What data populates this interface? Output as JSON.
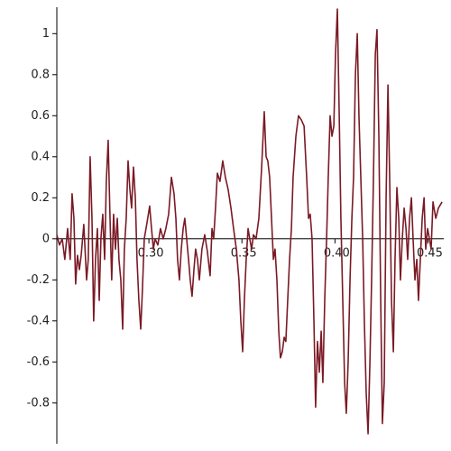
{
  "chart_data": {
    "type": "line",
    "color": "#7a1a25",
    "xlim": [
      0.2505,
      0.4585
    ],
    "ylim": [
      -0.99,
      1.12
    ],
    "xticks": [
      {
        "value": 0.3,
        "label": "0.30"
      },
      {
        "value": 0.35,
        "label": "0.35"
      },
      {
        "value": 0.4,
        "label": "0.40"
      },
      {
        "value": 0.45,
        "label": "0.45"
      }
    ],
    "yticks": [
      -0.8,
      -0.6,
      -0.4,
      -0.2,
      0,
      0.2,
      0.4,
      0.6,
      0.8,
      1
    ],
    "x": [
      0.2505,
      0.2519,
      0.2534,
      0.2548,
      0.2563,
      0.2577,
      0.2587,
      0.2597,
      0.2606,
      0.2616,
      0.2626,
      0.2636,
      0.265,
      0.2665,
      0.2674,
      0.2684,
      0.2694,
      0.2703,
      0.2713,
      0.2723,
      0.2733,
      0.2742,
      0.2752,
      0.2762,
      0.2771,
      0.2781,
      0.2791,
      0.28,
      0.281,
      0.282,
      0.283,
      0.2839,
      0.2849,
      0.2859,
      0.2868,
      0.2878,
      0.2888,
      0.2897,
      0.2907,
      0.2917,
      0.2927,
      0.2936,
      0.2946,
      0.2956,
      0.2965,
      0.2975,
      0.299,
      0.3004,
      0.3014,
      0.3024,
      0.3033,
      0.3048,
      0.3062,
      0.3077,
      0.3091,
      0.3106,
      0.3121,
      0.3135,
      0.3145,
      0.3154,
      0.3164,
      0.3174,
      0.3184,
      0.3193,
      0.3203,
      0.3213,
      0.3222,
      0.3232,
      0.3242,
      0.3251,
      0.3261,
      0.3271,
      0.3285,
      0.33,
      0.3314,
      0.3329,
      0.3339,
      0.3348,
      0.3358,
      0.3368,
      0.3382,
      0.3397,
      0.3411,
      0.3426,
      0.3441,
      0.3455,
      0.347,
      0.3484,
      0.3494,
      0.3504,
      0.3513,
      0.3523,
      0.3533,
      0.3542,
      0.3552,
      0.3562,
      0.3576,
      0.3591,
      0.3606,
      0.362,
      0.363,
      0.3639,
      0.3649,
      0.3659,
      0.3669,
      0.3678,
      0.3688,
      0.3698,
      0.3707,
      0.3717,
      0.3727,
      0.3736,
      0.3746,
      0.3756,
      0.3766,
      0.3775,
      0.379,
      0.3804,
      0.3819,
      0.3834,
      0.3848,
      0.3858,
      0.3867,
      0.3877,
      0.3887,
      0.3896,
      0.3906,
      0.3916,
      0.3926,
      0.3935,
      0.3945,
      0.3955,
      0.3964,
      0.3974,
      0.3984,
      0.3994,
      0.4003,
      0.4013,
      0.4023,
      0.4032,
      0.4042,
      0.4052,
      0.4061,
      0.4071,
      0.4081,
      0.4091,
      0.41,
      0.411,
      0.412,
      0.4129,
      0.4139,
      0.4149,
      0.4158,
      0.4168,
      0.4178,
      0.4188,
      0.4197,
      0.4207,
      0.4217,
      0.4226,
      0.4236,
      0.4246,
      0.4255,
      0.4265,
      0.4275,
      0.4285,
      0.4294,
      0.4304,
      0.4314,
      0.4323,
      0.4333,
      0.4343,
      0.4352,
      0.4362,
      0.4372,
      0.4382,
      0.4391,
      0.4401,
      0.4411,
      0.442,
      0.443,
      0.444,
      0.4449,
      0.4459,
      0.4469,
      0.4479,
      0.4488,
      0.4498,
      0.4508,
      0.4517,
      0.4527,
      0.4542,
      0.4556,
      0.4576
    ],
    "values": [
      0.02,
      -0.03,
      0.0,
      -0.1,
      0.05,
      -0.1,
      0.22,
      0.1,
      -0.22,
      -0.08,
      -0.15,
      -0.08,
      0.07,
      -0.2,
      -0.1,
      0.4,
      0.1,
      -0.4,
      -0.1,
      0.05,
      -0.3,
      0.0,
      0.12,
      -0.1,
      0.28,
      0.48,
      0.1,
      -0.2,
      0.12,
      -0.05,
      0.1,
      -0.1,
      -0.2,
      -0.44,
      -0.05,
      0.1,
      0.38,
      0.25,
      0.15,
      0.35,
      0.2,
      -0.1,
      -0.3,
      -0.44,
      -0.25,
      0.0,
      0.08,
      0.16,
      0.05,
      -0.05,
      0.0,
      -0.03,
      0.05,
      0.0,
      0.05,
      0.12,
      0.3,
      0.22,
      0.1,
      -0.1,
      -0.2,
      -0.05,
      0.05,
      0.1,
      0.0,
      -0.1,
      -0.2,
      -0.28,
      -0.15,
      -0.05,
      -0.1,
      -0.2,
      -0.05,
      0.02,
      -0.06,
      -0.18,
      0.05,
      0.0,
      0.15,
      0.32,
      0.28,
      0.38,
      0.3,
      0.24,
      0.15,
      0.05,
      -0.05,
      -0.2,
      -0.4,
      -0.55,
      -0.3,
      -0.1,
      0.05,
      0.0,
      -0.05,
      0.02,
      0.0,
      0.1,
      0.35,
      0.62,
      0.4,
      0.38,
      0.3,
      0.1,
      -0.1,
      -0.05,
      -0.2,
      -0.45,
      -0.58,
      -0.55,
      -0.48,
      -0.5,
      -0.3,
      -0.1,
      0.05,
      0.3,
      0.5,
      0.6,
      0.58,
      0.55,
      0.3,
      0.1,
      0.12,
      0.0,
      -0.4,
      -0.82,
      -0.5,
      -0.65,
      -0.45,
      -0.7,
      -0.3,
      0.0,
      0.3,
      0.6,
      0.5,
      0.55,
      0.9,
      1.12,
      0.6,
      0.1,
      -0.3,
      -0.7,
      -0.85,
      -0.6,
      -0.2,
      0.1,
      0.3,
      0.8,
      1.0,
      0.6,
      0.3,
      0.0,
      -0.4,
      -0.75,
      -0.95,
      -0.6,
      -0.2,
      0.3,
      0.9,
      1.02,
      0.5,
      -0.3,
      -0.9,
      -0.7,
      0.2,
      0.75,
      0.3,
      -0.3,
      -0.55,
      -0.1,
      0.25,
      0.1,
      -0.2,
      0.0,
      0.15,
      0.05,
      -0.1,
      0.1,
      0.2,
      0.0,
      -0.2,
      -0.1,
      -0.3,
      -0.1,
      0.1,
      0.2,
      -0.05,
      0.05,
      0.0,
      -0.05,
      0.18,
      0.1,
      0.15,
      0.18
    ]
  }
}
